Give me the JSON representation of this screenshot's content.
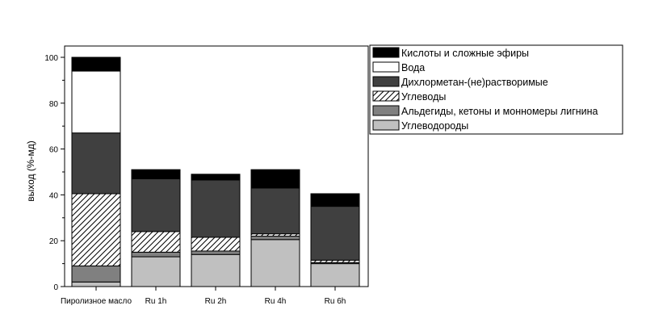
{
  "chart_data": {
    "type": "bar",
    "stacked": true,
    "categories": [
      "Пиролизное масло",
      "Ru 1h",
      "Ru 2h",
      "Ru 4h",
      "Ru 6h"
    ],
    "ylabel": "выход (%-мд)",
    "xlabel": "",
    "ylim": [
      0,
      100
    ],
    "yticks": [
      0,
      20,
      40,
      60,
      80,
      100
    ],
    "grid": false,
    "legend_position": "right-top",
    "series": [
      {
        "name": "Углеводороды",
        "fill": "#c0c0c0",
        "pattern": "solid",
        "values": [
          2,
          13,
          14,
          20.5,
          10
        ]
      },
      {
        "name": "Альдегиды, кетоны и монномеры лигнина",
        "fill": "#808080",
        "pattern": "solid",
        "values": [
          7,
          2,
          1.5,
          1.5,
          0.5
        ]
      },
      {
        "name": "Углеводы",
        "fill": "#ffffff",
        "pattern": "hatch",
        "values": [
          31.5,
          9,
          6,
          1,
          1
        ]
      },
      {
        "name": "Дихлорметан-(не)растворимые",
        "fill": "#404040",
        "pattern": "solid",
        "values": [
          26.5,
          23,
          25,
          20,
          23.5
        ]
      },
      {
        "name": "Вода",
        "fill": "#ffffff",
        "pattern": "solid",
        "values": [
          27,
          0,
          0,
          0,
          0
        ]
      },
      {
        "name": "Кислоты и сложные эфиры",
        "fill": "#000000",
        "pattern": "solid",
        "values": [
          6,
          4,
          2.5,
          8,
          5.5
        ]
      }
    ],
    "legend_order": [
      "Кислоты и сложные эфиры",
      "Вода",
      "Дихлорметан-(не)растворимые",
      "Углеводы",
      "Альдегиды, кетоны и монномеры лигнина",
      "Углеводороды"
    ]
  }
}
